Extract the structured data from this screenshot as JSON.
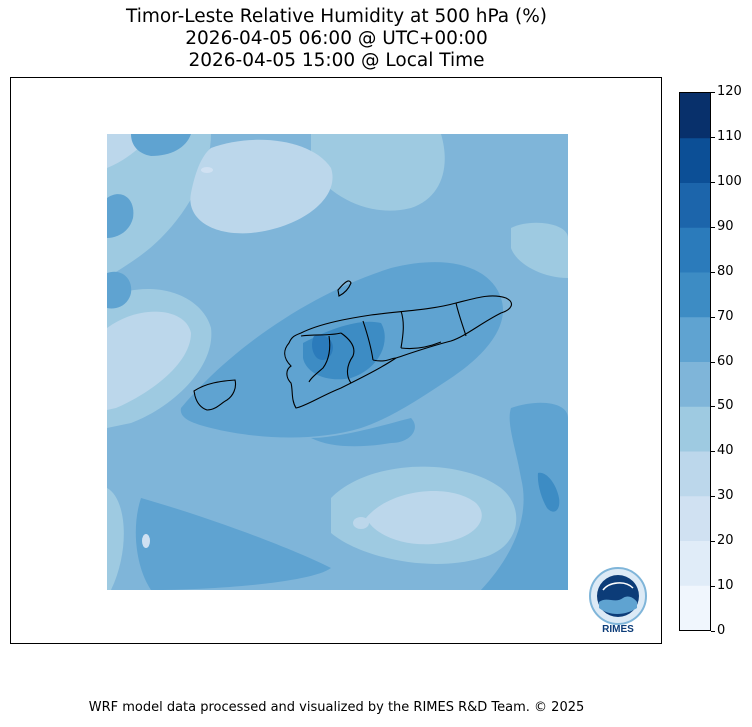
{
  "title": {
    "line1": "Timor-Leste Relative Humidity at 500 hPa (%)",
    "line2": "2026-04-05 06:00 @ UTC+00:00",
    "line3": "2026-04-05 15:00 @ Local Time"
  },
  "colorbar": {
    "min": 0,
    "max": 120,
    "ticks": [
      "0",
      "10",
      "20",
      "30",
      "40",
      "50",
      "60",
      "70",
      "80",
      "90",
      "100",
      "110",
      "120"
    ],
    "colors": [
      "#f0f6fd",
      "#e0ecf8",
      "#d0e1f2",
      "#bcd7eb",
      "#9ecae1",
      "#7fb5d9",
      "#5fa3d1",
      "#3d8cc4",
      "#2b7bbb",
      "#1c65ab",
      "#0c4f96",
      "#08306b"
    ]
  },
  "logo": {
    "text": "RIMES"
  },
  "footer": {
    "text": "WRF model data processed and visualized by the RIMES R&D Team. © 2025"
  }
}
